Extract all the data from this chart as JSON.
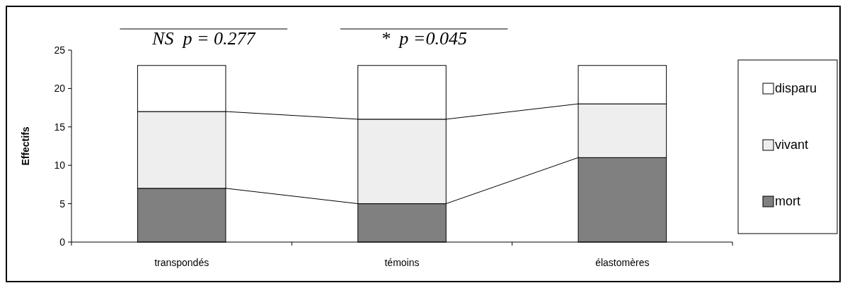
{
  "chart_data": {
    "type": "bar",
    "stacked": true,
    "ylabel": "Effectifs",
    "categories": [
      "transpondés",
      "témoins",
      "élastomères"
    ],
    "series": [
      {
        "name": "mort",
        "color": "#808080",
        "values": [
          7,
          5,
          11
        ]
      },
      {
        "name": "vivant",
        "color": "#eeeeee",
        "values": [
          10,
          11,
          7
        ]
      },
      {
        "name": "disparu",
        "color": "#ffffff",
        "values": [
          6,
          7,
          5
        ]
      }
    ],
    "ylim": [
      0,
      25
    ],
    "yticks": [
      0,
      5,
      10,
      15,
      20,
      25
    ],
    "grid": false,
    "legend": "right",
    "annotations": [
      "NS  p = 0.277",
      "*  p =0.045"
    ]
  }
}
